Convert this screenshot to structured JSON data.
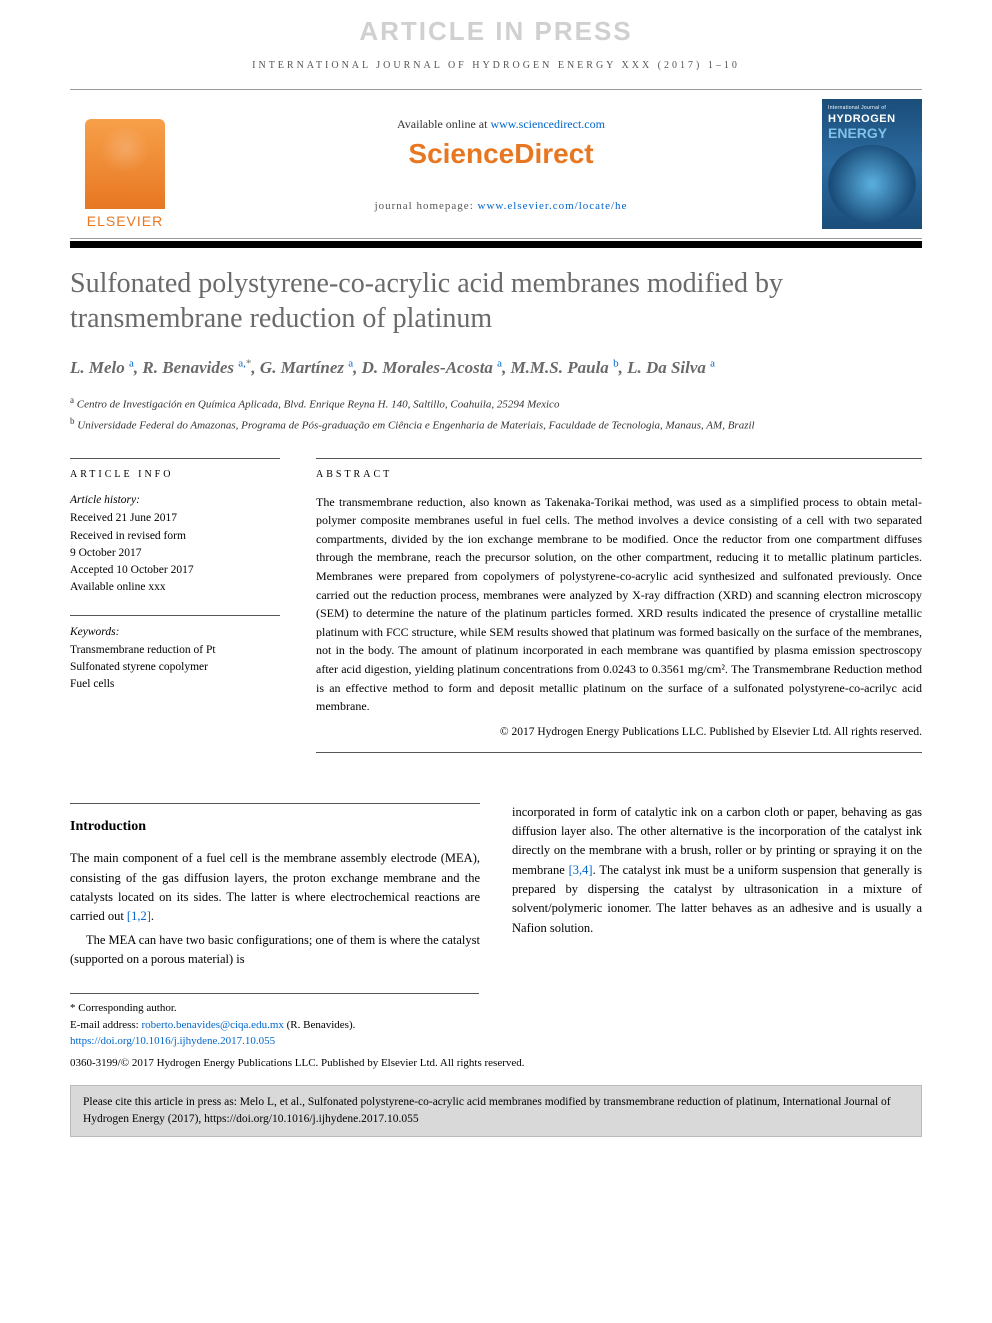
{
  "watermark": "ARTICLE IN PRESS",
  "runningHead": "INTERNATIONAL JOURNAL OF HYDROGEN ENERGY XXX (2017) 1–10",
  "masthead": {
    "elsevier": "ELSEVIER",
    "availPrefix": "Available online at ",
    "availLink": "www.sciencedirect.com",
    "sdLogo": "ScienceDirect",
    "homepagePrefix": "journal homepage: ",
    "homepageLink": "www.elsevier.com/locate/he",
    "cover": {
      "line1": "International Journal of",
      "line2": "HYDROGEN",
      "line3": "ENERGY"
    }
  },
  "title": "Sulfonated polystyrene-co-acrylic acid membranes modified by transmembrane reduction of platinum",
  "authors": [
    {
      "name": "L. Melo",
      "aff": "a"
    },
    {
      "name": "R. Benavides",
      "aff": "a",
      "corr": true
    },
    {
      "name": "G. Martínez",
      "aff": "a"
    },
    {
      "name": "D. Morales-Acosta",
      "aff": "a"
    },
    {
      "name": "M.M.S. Paula",
      "aff": "b"
    },
    {
      "name": "L. Da Silva",
      "aff": "a"
    }
  ],
  "affiliations": [
    {
      "key": "a",
      "text": "Centro de Investigación en Química Aplicada, Blvd. Enrique Reyna H. 140, Saltillo, Coahuila, 25294 Mexico"
    },
    {
      "key": "b",
      "text": "Universidade Federal do Amazonas, Programa de Pós-graduação em Ciência e Engenharia de Materiais, Faculdade de Tecnologia, Manaus, AM, Brazil"
    }
  ],
  "articleInfo": {
    "heading": "ARTICLE INFO",
    "historyLabel": "Article history:",
    "history": [
      "Received 21 June 2017",
      "Received in revised form",
      "9 October 2017",
      "Accepted 10 October 2017",
      "Available online xxx"
    ],
    "keywordsLabel": "Keywords:",
    "keywords": [
      "Transmembrane reduction of Pt",
      "Sulfonated styrene copolymer",
      "Fuel cells"
    ]
  },
  "abstract": {
    "heading": "ABSTRACT",
    "text": "The transmembrane reduction, also known as Takenaka-Torikai method, was used as a simplified process to obtain metal-polymer composite membranes useful in fuel cells. The method involves a device consisting of a cell with two separated compartments, divided by the ion exchange membrane to be modified. Once the reductor from one compartment diffuses through the membrane, reach the precursor solution, on the other compartment, reducing it to metallic platinum particles. Membranes were prepared from copolymers of polystyrene-co-acrylic acid synthesized and sulfonated previously. Once carried out the reduction process, membranes were analyzed by X-ray diffraction (XRD) and scanning electron microscopy (SEM) to determine the nature of the platinum particles formed. XRD results indicated the presence of crystalline metallic platinum with FCC structure, while SEM results showed that platinum was formed basically on the surface of the membranes, not in the body. The amount of platinum incorporated in each membrane was quantified by plasma emission spectroscopy after acid digestion, yielding platinum concentrations from 0.0243 to 0.3561 mg/cm². The Transmembrane Reduction method is an effective method to form and deposit metallic platinum on the surface of a sulfonated polystyrene-co-acrilyc acid membrane.",
    "copyright": "© 2017 Hydrogen Energy Publications LLC. Published by Elsevier Ltd. All rights reserved."
  },
  "introduction": {
    "heading": "Introduction",
    "p1a": "The main component of a fuel cell is the membrane assembly electrode (MEA), consisting of the gas diffusion layers, the proton exchange membrane and the catalysts located on its sides. The latter is where electrochemical reactions are carried out ",
    "cite1": "[1,2]",
    "p1b": ".",
    "p2": "The MEA can have two basic configurations; one of them is where the catalyst (supported on a porous material) is",
    "p3a": "incorporated in form of catalytic ink on a carbon cloth or paper, behaving as gas diffusion layer also. The other alternative is the incorporation of the catalyst ink directly on the membrane with a brush, roller or by printing or spraying it on the membrane ",
    "cite2": "[3,4]",
    "p3b": ". The catalyst ink must be a uniform suspension that generally is prepared by dispersing the catalyst by ultrasonication in a mixture of solvent/polymeric ionomer. The latter behaves as an adhesive and is usually a Nafion solution."
  },
  "footnotes": {
    "corrLabel": "* Corresponding author.",
    "emailLabel": "E-mail address: ",
    "email": "roberto.benavides@ciqa.edu.mx",
    "emailSuffix": " (R. Benavides).",
    "doi": "https://doi.org/10.1016/j.ijhydene.2017.10.055",
    "issnLine": "0360-3199/© 2017 Hydrogen Energy Publications LLC. Published by Elsevier Ltd. All rights reserved."
  },
  "citeBox": "Please cite this article in press as: Melo L, et al., Sulfonated polystyrene-co-acrylic acid membranes modified by transmembrane reduction of platinum, International Journal of Hydrogen Energy (2017), https://doi.org/10.1016/j.ijhydene.2017.10.055"
}
